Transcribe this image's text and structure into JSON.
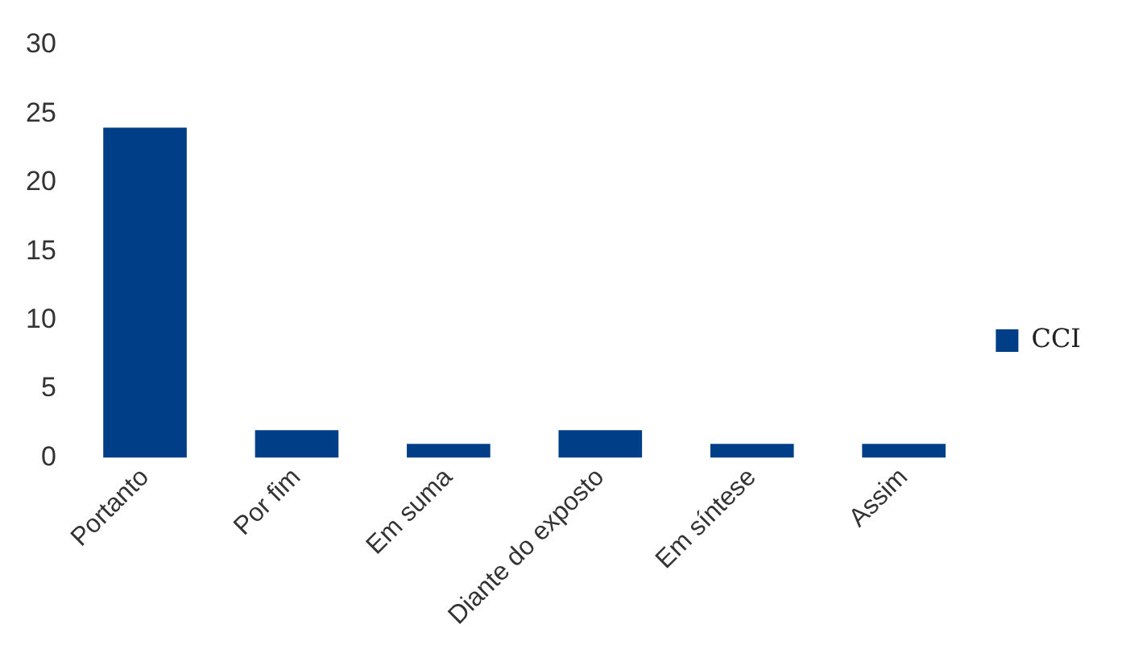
{
  "chart_data": {
    "type": "bar",
    "categories": [
      "Portanto",
      "Por fim",
      "Em suma",
      "Diante do exposto",
      "Em síntese",
      "Assim"
    ],
    "series": [
      {
        "name": "CCI",
        "color": "#003f87",
        "values": [
          24,
          2,
          1,
          2,
          1,
          1
        ]
      }
    ],
    "ylim": [
      0,
      30
    ],
    "yticks": [
      0,
      5,
      10,
      15,
      20,
      25,
      30
    ],
    "grid": false,
    "legend": "right"
  }
}
